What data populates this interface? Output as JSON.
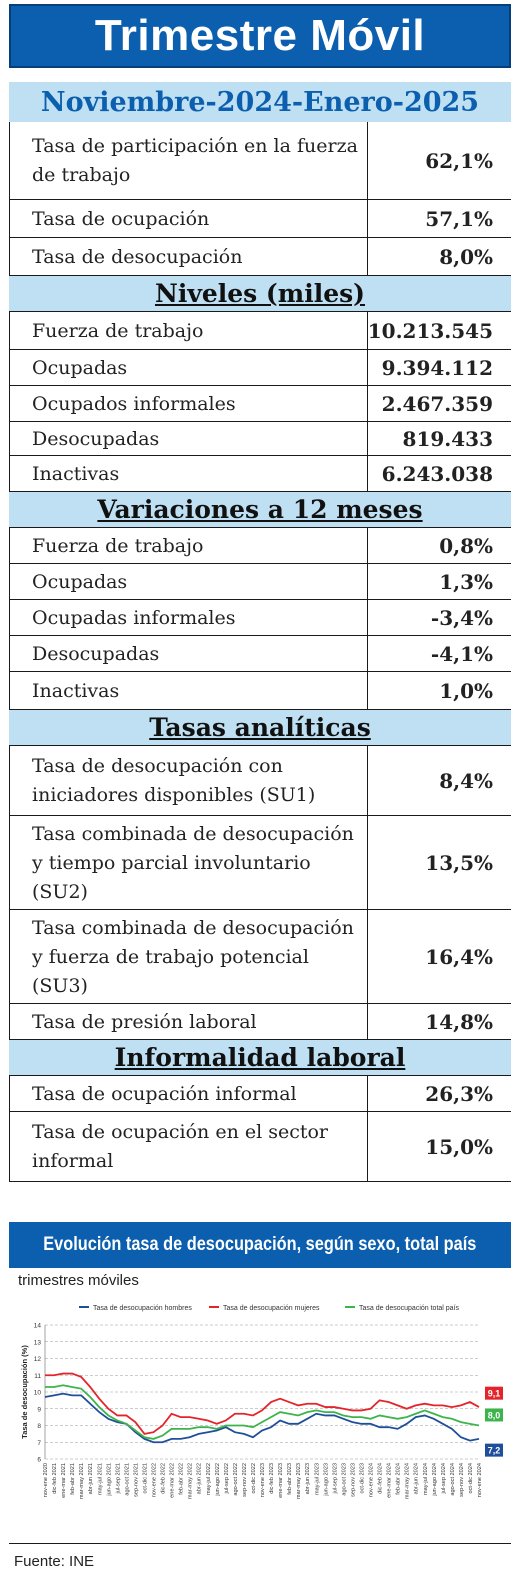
{
  "title": "Trimestre Móvil",
  "period": "Noviembre-2024-Enero-2025",
  "rows_top": [
    {
      "label": "Tasa de participación en la fuerza de trabajo",
      "value": "62,1%"
    },
    {
      "label": "Tasa de ocupación",
      "value": "57,1%"
    },
    {
      "label": "Tasa de desocupación",
      "value": "8,0%"
    }
  ],
  "sections": [
    {
      "title": "Niveles (miles)",
      "rows": [
        {
          "label": "Fuerza de trabajo",
          "value": "10.213.545"
        },
        {
          "label": "Ocupadas",
          "value": "9.394.112"
        },
        {
          "label": "Ocupados informales",
          "value": "2.467.359"
        },
        {
          "label": "Desocupadas",
          "value": "819.433"
        },
        {
          "label": "Inactivas",
          "value": "6.243.038"
        }
      ]
    },
    {
      "title": "Variaciones a 12 meses",
      "rows": [
        {
          "label": "Fuerza de trabajo",
          "value": "0,8%"
        },
        {
          "label": "Ocupadas",
          "value": "1,3%"
        },
        {
          "label": "Ocupadas informales",
          "value": "-3,4%"
        },
        {
          "label": "Desocupadas",
          "value": "-4,1%"
        },
        {
          "label": "Inactivas",
          "value": "1,0%"
        }
      ]
    },
    {
      "title": "Tasas analíticas",
      "rows": [
        {
          "label": "Tasa de desocupación con iniciadores disponibles (SU1)",
          "value": "8,4%"
        },
        {
          "label": "Tasa combinada de desocupación y tiempo parcial involuntario (SU2)",
          "value": "13,5%"
        },
        {
          "label": "Tasa combinada de desocupación y fuerza de trabajo potencial (SU3)",
          "value": "16,4%"
        },
        {
          "label": "Tasa de presión laboral",
          "value": "14,8%"
        }
      ]
    },
    {
      "title": "Informalidad laboral",
      "rows": [
        {
          "label": "Tasa de ocupación informal",
          "value": "26,3%"
        },
        {
          "label": "Tasa de ocupación en el sector informal",
          "value": "15,0%"
        }
      ]
    }
  ],
  "chart_banner": "Evolución tasa de desocupación, según sexo, total país",
  "chart_subtitle": "trimestres móviles",
  "source": "Fuente: INE",
  "chart_data": {
    "type": "line",
    "ylabel": "Tasa de desocupación (%)",
    "ylim": [
      6,
      14
    ],
    "yticks": [
      6,
      7,
      8,
      9,
      10,
      11,
      12,
      13,
      14
    ],
    "grid": true,
    "legend_position": "top",
    "x": [
      "nov-ene 2020",
      "dic-feb 2021",
      "ene-mar 2021",
      "feb-abr 2021",
      "mar-may 2021",
      "abr-jun 2021",
      "may-jul 2021",
      "jun-ago 2021",
      "jul-sep 2021",
      "ago-oct 2021",
      "sep-nov 2021",
      "oct-dic 2021",
      "nov-ene 2022",
      "dic-feb 2022",
      "ene-mar 2022",
      "feb-abr 2022",
      "mar-may 2022",
      "abr-jun 2022",
      "may-jul 2022",
      "jun-ago 2022",
      "jul-sep 2022",
      "ago-oct 2022",
      "sep-nov 2022",
      "oct-dic 2022",
      "nov-ene 2023",
      "dic-feb 2023",
      "ene-mar 2023",
      "feb-abr 2023",
      "mar-may 2023",
      "abr-jun 2023",
      "may-jul 2023",
      "jun-ago 2023",
      "jul-sep 2023",
      "ago-oct 2023",
      "sep-nov 2023",
      "oct-dic 2023",
      "nov-ene 2024",
      "dic-feb 2024",
      "ene-mar 2024",
      "feb-abr 2024",
      "mar-may 2024",
      "abr-jun 2024",
      "may-jul 2024",
      "jun-ago 2024",
      "jul-sep 2024",
      "ago-oct 2024",
      "sep-nov 2024",
      "oct-dic 2024",
      "nov-ene 2024"
    ],
    "series": [
      {
        "name": "Tasa de desocupación hombres",
        "color": "#1f4e9a",
        "values": [
          9.7,
          9.8,
          9.9,
          9.8,
          9.8,
          9.3,
          8.8,
          8.4,
          8.2,
          8.1,
          7.6,
          7.2,
          7.0,
          7.0,
          7.2,
          7.2,
          7.3,
          7.5,
          7.6,
          7.7,
          7.9,
          7.6,
          7.5,
          7.3,
          7.7,
          7.9,
          8.3,
          8.1,
          8.1,
          8.4,
          8.7,
          8.6,
          8.6,
          8.4,
          8.2,
          8.1,
          8.1,
          7.9,
          7.9,
          7.8,
          8.1,
          8.5,
          8.6,
          8.4,
          8.1,
          7.8,
          7.3,
          7.1,
          7.2
        ]
      },
      {
        "name": "Tasa de desocupación mujeres",
        "color": "#e3252b",
        "values": [
          11.0,
          11.0,
          11.1,
          11.1,
          10.9,
          10.3,
          9.6,
          9.0,
          8.6,
          8.6,
          8.2,
          7.5,
          7.6,
          8.0,
          8.7,
          8.5,
          8.5,
          8.4,
          8.3,
          8.1,
          8.3,
          8.7,
          8.7,
          8.6,
          8.9,
          9.4,
          9.6,
          9.4,
          9.2,
          9.3,
          9.3,
          9.1,
          9.1,
          9.0,
          8.9,
          8.9,
          9.0,
          9.5,
          9.4,
          9.2,
          9.0,
          9.2,
          9.3,
          9.2,
          9.2,
          9.1,
          9.2,
          9.4,
          9.1
        ]
      },
      {
        "name": "Tasa de desocupación total país",
        "color": "#3cb44b",
        "values": [
          10.3,
          10.3,
          10.4,
          10.3,
          10.2,
          9.7,
          9.1,
          8.6,
          8.3,
          8.1,
          7.7,
          7.3,
          7.2,
          7.4,
          7.8,
          7.8,
          7.8,
          7.9,
          7.9,
          7.8,
          8.0,
          8.0,
          8.0,
          7.9,
          8.2,
          8.5,
          8.8,
          8.7,
          8.6,
          8.8,
          8.9,
          8.8,
          8.8,
          8.6,
          8.5,
          8.5,
          8.4,
          8.6,
          8.5,
          8.4,
          8.5,
          8.7,
          8.9,
          8.7,
          8.5,
          8.4,
          8.2,
          8.1,
          8.0
        ]
      }
    ],
    "end_labels": [
      "9,1",
      "8,0",
      "7,2"
    ]
  }
}
